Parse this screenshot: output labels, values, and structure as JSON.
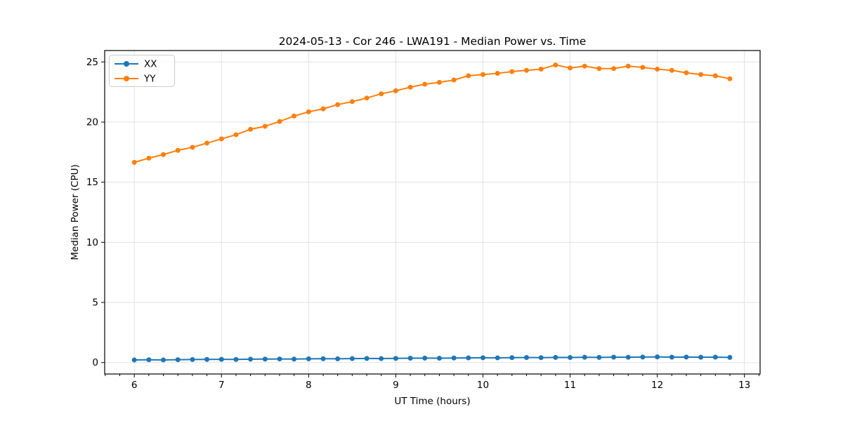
{
  "chart_data": {
    "type": "line",
    "title": "2024-05-13 - Cor 246 - LWA191 - Median Power vs. Time",
    "xlabel": "UT Time (hours)",
    "ylabel": "Median Power (CPU)",
    "x": [
      6.0,
      6.167,
      6.333,
      6.5,
      6.667,
      6.833,
      7.0,
      7.167,
      7.333,
      7.5,
      7.667,
      7.833,
      8.0,
      8.167,
      8.333,
      8.5,
      8.667,
      8.833,
      9.0,
      9.167,
      9.333,
      9.5,
      9.667,
      9.833,
      10.0,
      10.167,
      10.333,
      10.5,
      10.667,
      10.833,
      11.0,
      11.167,
      11.333,
      11.5,
      11.667,
      11.833,
      12.0,
      12.167,
      12.333,
      12.5,
      12.667,
      12.833
    ],
    "series": [
      {
        "name": "XX",
        "color": "#1f77b4",
        "values": [
          0.22,
          0.23,
          0.22,
          0.24,
          0.25,
          0.26,
          0.27,
          0.26,
          0.28,
          0.29,
          0.3,
          0.29,
          0.31,
          0.32,
          0.31,
          0.33,
          0.34,
          0.33,
          0.35,
          0.36,
          0.37,
          0.36,
          0.38,
          0.39,
          0.4,
          0.39,
          0.41,
          0.42,
          0.41,
          0.43,
          0.42,
          0.44,
          0.43,
          0.45,
          0.44,
          0.46,
          0.47,
          0.45,
          0.46,
          0.44,
          0.45,
          0.43
        ]
      },
      {
        "name": "YY",
        "color": "#ff7f0e",
        "values": [
          16.65,
          17.0,
          17.3,
          17.65,
          17.9,
          18.25,
          18.6,
          18.95,
          19.4,
          19.65,
          20.05,
          20.5,
          20.85,
          21.1,
          21.45,
          21.7,
          22.0,
          22.35,
          22.6,
          22.9,
          23.15,
          23.3,
          23.5,
          23.85,
          23.95,
          24.05,
          24.2,
          24.3,
          24.4,
          24.75,
          24.5,
          24.65,
          24.45,
          24.45,
          24.65,
          24.55,
          24.4,
          24.3,
          24.1,
          23.95,
          23.85,
          23.6
        ]
      }
    ],
    "xlim": [
      5.66,
      13.18
    ],
    "ylim": [
      -0.95,
      25.95
    ],
    "x_ticks": [
      6,
      7,
      8,
      9,
      10,
      11,
      12,
      13
    ],
    "y_ticks": [
      0,
      5,
      10,
      15,
      20,
      25
    ],
    "x_minor_divisions": 6,
    "grid": true,
    "legend_position": "upper left",
    "marker": "circle",
    "marker_radius": 3.5,
    "line_width": 2
  },
  "colors": {
    "background": "#ffffff",
    "grid": "#e2e2e2",
    "text": "#000000",
    "legend_border": "#cccccc"
  }
}
